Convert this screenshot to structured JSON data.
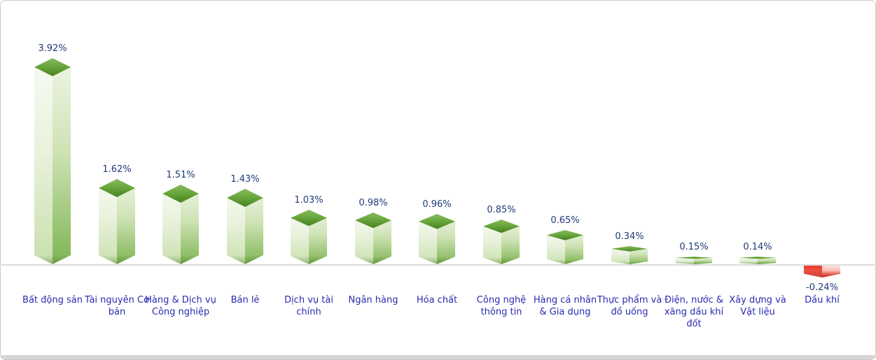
{
  "chart_data": {
    "type": "bar",
    "title": "",
    "xlabel": "",
    "ylabel": "",
    "unit": "%",
    "grid": false,
    "legend": false,
    "ylim": [
      -0.5,
      4.2
    ],
    "categories": [
      "Bất động sản",
      "Tài nguyên Cơ bản",
      "Hàng & Dịch vụ Công nghiệp",
      "Bán lẻ",
      "Dịch vụ tài chính",
      "Ngân hàng",
      "Hóa chất",
      "Công nghệ thông tin",
      "Hàng cá nhân & Gia dụng",
      "Thực phẩm và đồ uống",
      "Điện, nước & xăng dầu khí đốt",
      "Xây dựng và Vật liệu",
      "Dầu khí"
    ],
    "values": [
      3.92,
      1.62,
      1.51,
      1.43,
      1.03,
      0.98,
      0.96,
      0.85,
      0.65,
      0.34,
      0.15,
      0.14,
      -0.24
    ],
    "value_labels": [
      "3.92%",
      "1.62%",
      "1.51%",
      "1.43%",
      "1.03%",
      "0.98%",
      "0.96%",
      "0.85%",
      "0.65%",
      "0.34%",
      "0.15%",
      "0.14%",
      "-0.24%"
    ],
    "colors": {
      "positive_bar": "#6fae49",
      "negative_bar": "#e93a2c",
      "bar_top_face": "#5d9a30",
      "axis_line": "#dcdcdc",
      "value_label_text": "#1f3a77",
      "category_label_text": "#2a2ab2",
      "widget_border": "#c9c9c9",
      "bottom_strip": "#d6d6d6",
      "background": "#ffffff"
    }
  }
}
